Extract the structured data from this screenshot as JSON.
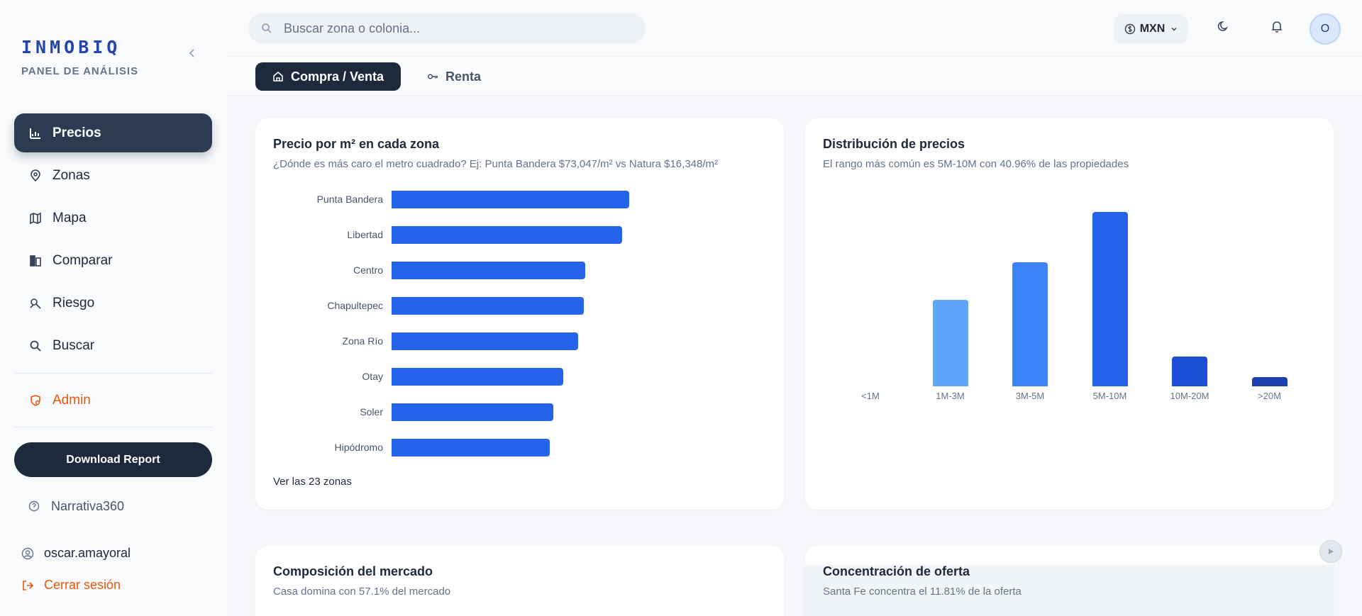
{
  "sidebar": {
    "brand": "INMOBIQ",
    "brand_sub": "PANEL DE ANÁLISIS",
    "nav": [
      {
        "label": "Precios",
        "icon": "chart-icon",
        "active": true
      },
      {
        "label": "Zonas",
        "icon": "map-pin-icon"
      },
      {
        "label": "Mapa",
        "icon": "map-icon"
      },
      {
        "label": "Comparar",
        "icon": "compare-icon"
      },
      {
        "label": "Riesgo",
        "icon": "risk-icon"
      },
      {
        "label": "Buscar",
        "icon": "search-icon"
      }
    ],
    "admin": "Admin",
    "download": "Download Report",
    "narrativa": "Narrativa360",
    "user": "oscar.amayoral",
    "logout": "Cerrar sesión"
  },
  "topbar": {
    "search_placeholder": "Buscar zona o colonia...",
    "currency": "MXN",
    "avatar_initial": "O"
  },
  "tabs": [
    {
      "label": "Compra / Venta",
      "active": true
    },
    {
      "label": "Renta",
      "active": false
    }
  ],
  "cards": {
    "price_m2": {
      "title": "Precio por m² en cada zona",
      "subtitle": "¿Dónde es más caro el metro cuadrado? Ej: Punta Bandera $73,047/m² vs Natura $16,348/m²",
      "link": "Ver las 23 zonas"
    },
    "distribution": {
      "title": "Distribución de precios",
      "subtitle": "El rango más común es 5M-10M con 40.96% de las propiedades"
    },
    "composition": {
      "title": "Composición del mercado",
      "subtitle": "Casa domina con 57.1% del mercado"
    },
    "concentration": {
      "title": "Concentración de oferta",
      "subtitle": "Santa Fe concentra el 11.81% de la oferta"
    }
  },
  "chart_data": [
    {
      "type": "bar",
      "orientation": "horizontal",
      "categories": [
        "Punta Bandera",
        "Libertad",
        "Centro",
        "Chapultepec",
        "Zona Río",
        "Otay",
        "Soler",
        "Hipódromo"
      ],
      "values": [
        73047,
        70800,
        59500,
        59200,
        57400,
        52700,
        49800,
        48600
      ],
      "xlim": [
        0,
        120000
      ],
      "color": "#2563eb"
    },
    {
      "type": "bar",
      "categories": [
        "<1M",
        "1M-3M",
        "3M-5M",
        "5M-10M",
        "10M-20M",
        ">20M"
      ],
      "values": [
        0,
        20.4,
        29.1,
        40.96,
        7.0,
        2.1
      ],
      "ylim": [
        0,
        42
      ],
      "colors": [
        "#93c5fd",
        "#60a5fa",
        "#3b82f6",
        "#2563eb",
        "#1d4ed8",
        "#1e40af"
      ]
    }
  ]
}
